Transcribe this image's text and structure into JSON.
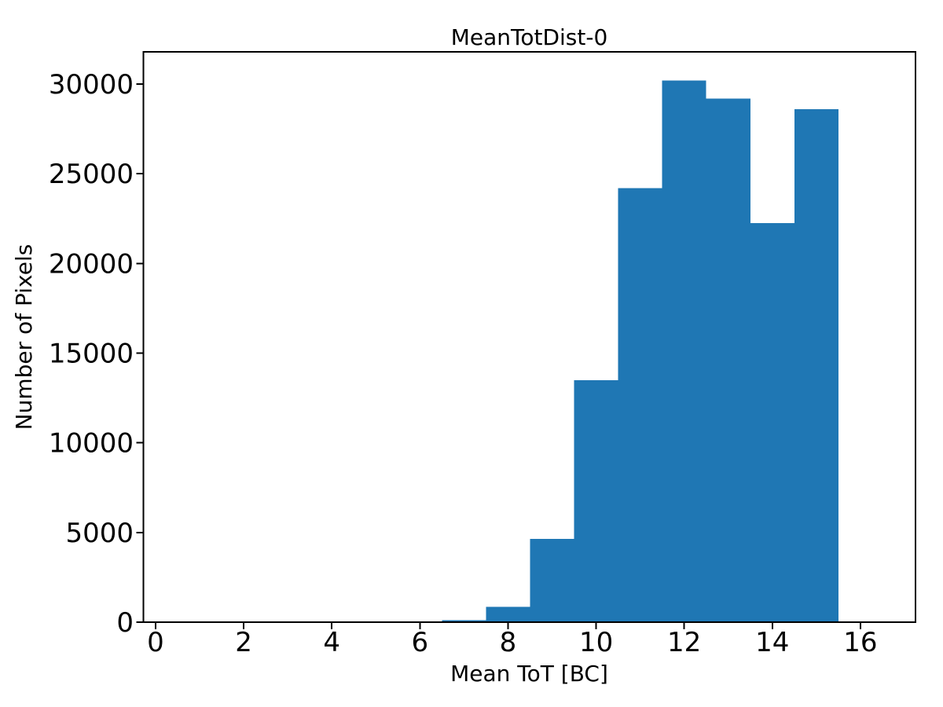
{
  "chart_data": {
    "type": "bar",
    "subtype": "histogram",
    "title": "MeanTotDist-0",
    "xlabel": "Mean ToT [BC]",
    "ylabel": "Number of Pixels",
    "bin_edges": [
      6.5,
      7.5,
      8.5,
      9.5,
      10.5,
      11.5,
      12.5,
      13.5,
      14.5,
      15.5
    ],
    "counts": [
      100,
      850,
      4650,
      13500,
      24200,
      30200,
      29200,
      22250,
      28600
    ],
    "x_ticks": [
      0,
      2,
      4,
      6,
      8,
      10,
      12,
      14,
      16
    ],
    "y_ticks": [
      0,
      5000,
      10000,
      15000,
      20000,
      25000,
      30000
    ],
    "xlim": [
      -0.28,
      17.25
    ],
    "ylim": [
      0,
      31800
    ],
    "bar_color": "#1f77b4",
    "axis_color": "#000000",
    "background_color": "#ffffff",
    "grid": false,
    "legend": "none"
  }
}
